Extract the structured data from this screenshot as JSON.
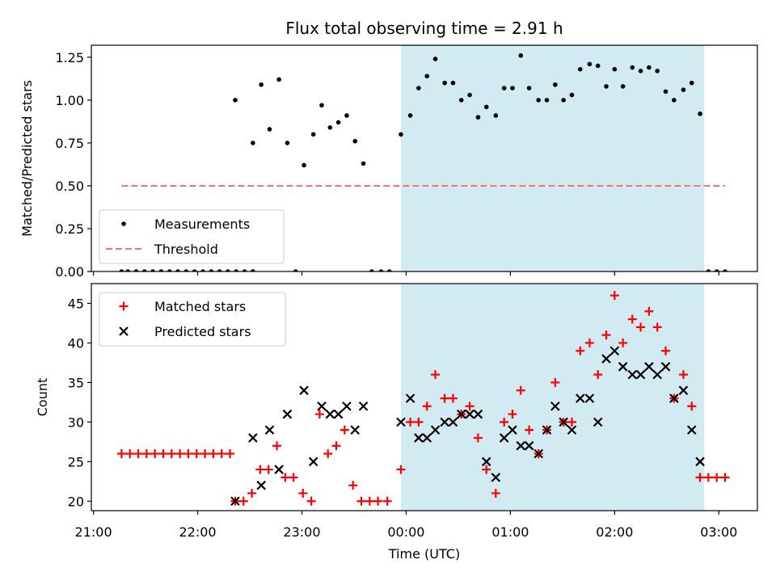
{
  "chart_data": {
    "title": "Flux total observing time = 2.91 h",
    "xlabel": "Time (UTC)",
    "x_tick_labels": [
      "21:00",
      "22:00",
      "23:00",
      "00:00",
      "01:00",
      "02:00",
      "03:00"
    ],
    "x_ticks_hours": [
      0,
      1,
      2,
      3,
      4,
      5,
      6
    ],
    "x_axis_note": "x values are hours since 21:00 UTC",
    "xlim": [
      -0.02,
      6.37
    ],
    "shaded_region_hours": [
      2.95,
      5.86
    ],
    "shaded_color": "#add8e6",
    "panels": [
      {
        "type": "scatter",
        "ylabel": "Matched/Predicted stars",
        "ylim": [
          0,
          1.32
        ],
        "y_ticks": [
          0,
          0.25,
          0.5,
          0.75,
          1.0,
          1.25
        ],
        "y_tick_labels": [
          "0.00",
          "0.25",
          "0.50",
          "0.75",
          "1.00",
          "1.25"
        ],
        "legend_position": "lower-left",
        "series": [
          {
            "name": "Measurements",
            "marker": "dot",
            "color": "#000000",
            "points": [
              [
                0.27,
                0
              ],
              [
                0.33,
                0
              ],
              [
                0.41,
                0
              ],
              [
                0.49,
                0
              ],
              [
                0.57,
                0
              ],
              [
                0.65,
                0
              ],
              [
                0.73,
                0
              ],
              [
                0.81,
                0
              ],
              [
                0.89,
                0
              ],
              [
                0.97,
                0
              ],
              [
                1.05,
                0
              ],
              [
                1.13,
                0
              ],
              [
                1.21,
                0
              ],
              [
                1.29,
                0
              ],
              [
                1.37,
                0
              ],
              [
                1.45,
                0
              ],
              [
                1.53,
                0
              ],
              [
                1.36,
                1.0
              ],
              [
                1.53,
                0
              ],
              [
                1.53,
                0.75
              ],
              [
                1.61,
                1.09
              ],
              [
                1.69,
                0.83
              ],
              [
                1.78,
                1.12
              ],
              [
                1.86,
                0.75
              ],
              [
                1.94,
                0
              ],
              [
                2.02,
                0.62
              ],
              [
                2.11,
                0.8
              ],
              [
                2.19,
                0.97
              ],
              [
                2.27,
                0.84
              ],
              [
                2.35,
                0.87
              ],
              [
                2.43,
                0.91
              ],
              [
                2.51,
                0.76
              ],
              [
                2.59,
                0.63
              ],
              [
                2.67,
                0
              ],
              [
                2.76,
                0
              ],
              [
                2.84,
                0
              ],
              [
                2.95,
                0.8
              ],
              [
                3.04,
                0.91
              ],
              [
                3.12,
                1.07
              ],
              [
                3.2,
                1.14
              ],
              [
                3.28,
                1.24
              ],
              [
                3.37,
                1.1
              ],
              [
                3.45,
                1.1
              ],
              [
                3.53,
                1.0
              ],
              [
                3.61,
                1.03
              ],
              [
                3.69,
                0.9
              ],
              [
                3.77,
                0.96
              ],
              [
                3.86,
                0.91
              ],
              [
                3.94,
                1.07
              ],
              [
                4.02,
                1.07
              ],
              [
                4.1,
                1.26
              ],
              [
                4.18,
                1.07
              ],
              [
                4.27,
                1.0
              ],
              [
                4.35,
                1.0
              ],
              [
                4.43,
                1.09
              ],
              [
                4.51,
                1.0
              ],
              [
                4.59,
                1.03
              ],
              [
                4.67,
                1.18
              ],
              [
                4.76,
                1.21
              ],
              [
                4.84,
                1.2
              ],
              [
                4.92,
                1.08
              ],
              [
                5.0,
                1.18
              ],
              [
                5.08,
                1.08
              ],
              [
                5.17,
                1.19
              ],
              [
                5.25,
                1.17
              ],
              [
                5.33,
                1.19
              ],
              [
                5.41,
                1.17
              ],
              [
                5.49,
                1.05
              ],
              [
                5.57,
                1.0
              ],
              [
                5.66,
                1.06
              ],
              [
                5.74,
                1.1
              ],
              [
                5.82,
                0.92
              ],
              [
                5.9,
                0
              ],
              [
                5.98,
                0
              ],
              [
                6.06,
                0
              ]
            ]
          },
          {
            "name": "Threshold",
            "type": "line",
            "dashed": true,
            "color": "#ff7070",
            "x": [
              0.27,
              6.06
            ],
            "y": [
              0.5,
              0.5
            ]
          }
        ]
      },
      {
        "type": "scatter",
        "ylabel": "Count",
        "ylim": [
          18.8,
          47.5
        ],
        "y_ticks": [
          20,
          25,
          30,
          35,
          40,
          45
        ],
        "y_tick_labels": [
          "20",
          "25",
          "30",
          "35",
          "40",
          "45"
        ],
        "legend_position": "upper-left",
        "series": [
          {
            "name": "Matched stars",
            "marker": "plus",
            "color": "#ff0000",
            "points": [
              [
                0.27,
                26
              ],
              [
                0.35,
                26
              ],
              [
                0.43,
                26
              ],
              [
                0.51,
                26
              ],
              [
                0.59,
                26
              ],
              [
                0.67,
                26
              ],
              [
                0.75,
                26
              ],
              [
                0.83,
                26
              ],
              [
                0.91,
                26
              ],
              [
                0.99,
                26
              ],
              [
                1.07,
                26
              ],
              [
                1.15,
                26
              ],
              [
                1.23,
                26
              ],
              [
                1.31,
                26
              ],
              [
                1.36,
                20
              ],
              [
                1.44,
                20
              ],
              [
                1.52,
                21
              ],
              [
                1.6,
                24
              ],
              [
                1.68,
                24
              ],
              [
                1.76,
                27
              ],
              [
                1.84,
                23
              ],
              [
                1.92,
                23
              ],
              [
                2.01,
                21
              ],
              [
                2.09,
                20
              ],
              [
                2.17,
                31
              ],
              [
                2.25,
                26
              ],
              [
                2.33,
                27
              ],
              [
                2.41,
                29
              ],
              [
                2.49,
                22
              ],
              [
                2.57,
                20
              ],
              [
                2.65,
                20
              ],
              [
                2.73,
                20
              ],
              [
                2.82,
                20
              ],
              [
                2.95,
                24
              ],
              [
                3.04,
                30
              ],
              [
                3.12,
                30
              ],
              [
                3.2,
                32
              ],
              [
                3.28,
                36
              ],
              [
                3.37,
                33
              ],
              [
                3.45,
                33
              ],
              [
                3.53,
                31
              ],
              [
                3.61,
                32
              ],
              [
                3.69,
                28
              ],
              [
                3.77,
                24
              ],
              [
                3.86,
                21
              ],
              [
                3.94,
                30
              ],
              [
                4.02,
                31
              ],
              [
                4.1,
                34
              ],
              [
                4.18,
                29
              ],
              [
                4.27,
                26
              ],
              [
                4.35,
                29
              ],
              [
                4.43,
                35
              ],
              [
                4.51,
                30
              ],
              [
                4.59,
                30
              ],
              [
                4.67,
                39
              ],
              [
                4.76,
                40
              ],
              [
                4.84,
                36
              ],
              [
                4.92,
                41
              ],
              [
                5.0,
                46
              ],
              [
                5.08,
                40
              ],
              [
                5.17,
                43
              ],
              [
                5.25,
                42
              ],
              [
                5.33,
                44
              ],
              [
                5.41,
                42
              ],
              [
                5.49,
                39
              ],
              [
                5.57,
                33
              ],
              [
                5.66,
                36
              ],
              [
                5.74,
                32
              ],
              [
                5.82,
                23
              ],
              [
                5.9,
                23
              ],
              [
                5.98,
                23
              ],
              [
                6.06,
                23
              ]
            ]
          },
          {
            "name": "Predicted stars",
            "marker": "x",
            "color": "#000000",
            "points": [
              [
                1.36,
                20
              ],
              [
                1.53,
                28
              ],
              [
                1.61,
                22
              ],
              [
                1.69,
                29
              ],
              [
                1.78,
                24
              ],
              [
                1.86,
                31
              ],
              [
                2.02,
                34
              ],
              [
                2.11,
                25
              ],
              [
                2.19,
                32
              ],
              [
                2.27,
                31
              ],
              [
                2.35,
                31
              ],
              [
                2.43,
                32
              ],
              [
                2.51,
                29
              ],
              [
                2.59,
                32
              ],
              [
                2.95,
                30
              ],
              [
                3.04,
                33
              ],
              [
                3.12,
                28
              ],
              [
                3.2,
                28
              ],
              [
                3.28,
                29
              ],
              [
                3.37,
                30
              ],
              [
                3.45,
                30
              ],
              [
                3.53,
                31
              ],
              [
                3.61,
                31
              ],
              [
                3.69,
                31
              ],
              [
                3.77,
                25
              ],
              [
                3.86,
                23
              ],
              [
                3.94,
                28
              ],
              [
                4.02,
                29
              ],
              [
                4.1,
                27
              ],
              [
                4.18,
                27
              ],
              [
                4.27,
                26
              ],
              [
                4.35,
                29
              ],
              [
                4.43,
                32
              ],
              [
                4.51,
                30
              ],
              [
                4.59,
                29
              ],
              [
                4.67,
                33
              ],
              [
                4.76,
                33
              ],
              [
                4.84,
                30
              ],
              [
                4.92,
                38
              ],
              [
                5.0,
                39
              ],
              [
                5.08,
                37
              ],
              [
                5.17,
                36
              ],
              [
                5.25,
                36
              ],
              [
                5.33,
                37
              ],
              [
                5.41,
                36
              ],
              [
                5.49,
                37
              ],
              [
                5.57,
                33
              ],
              [
                5.66,
                34
              ],
              [
                5.74,
                29
              ],
              [
                5.82,
                25
              ]
            ]
          }
        ]
      }
    ]
  }
}
